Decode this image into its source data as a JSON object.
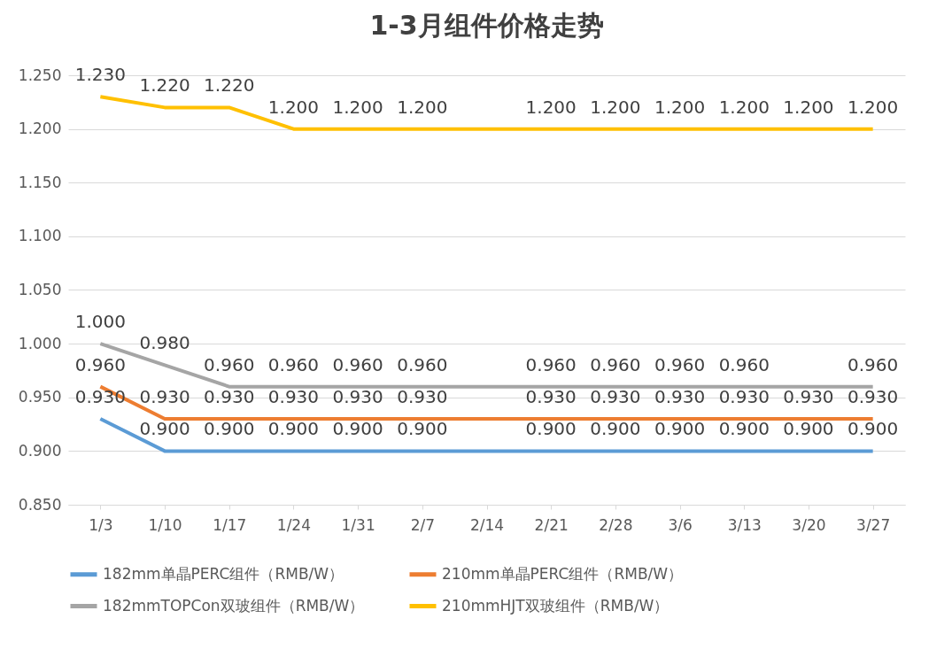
{
  "chart_data": {
    "type": "line",
    "title": "1-3月组件价格走势",
    "categories": [
      "1/3",
      "1/10",
      "1/17",
      "1/24",
      "1/31",
      "2/7",
      "2/14",
      "2/21",
      "2/28",
      "3/6",
      "3/13",
      "3/20",
      "3/27"
    ],
    "series": [
      {
        "name": "182mm单晶PERC组件（RMB/W）",
        "color": "#5b9bd5",
        "values": [
          0.93,
          0.9,
          0.9,
          0.9,
          0.9,
          0.9,
          0.9,
          0.9,
          0.9,
          0.9,
          0.9,
          0.9,
          0.9
        ],
        "value_labels": [
          "0.930",
          "0.900",
          "0.900",
          "0.900",
          "0.900",
          "0.900",
          null,
          "0.900",
          "0.900",
          "0.900",
          "0.900",
          "0.900",
          "0.900"
        ]
      },
      {
        "name": "210mm单晶PERC组件（RMB/W）",
        "color": "#ed7d31",
        "values": [
          0.96,
          0.93,
          0.93,
          0.93,
          0.93,
          0.93,
          0.93,
          0.93,
          0.93,
          0.93,
          0.93,
          0.93,
          0.93
        ],
        "value_labels": [
          "0.960",
          "0.930",
          "0.930",
          "0.930",
          "0.930",
          "0.930",
          null,
          "0.930",
          "0.930",
          "0.930",
          "0.930",
          "0.930",
          "0.930"
        ]
      },
      {
        "name": "182mmTOPCon双玻组件（RMB/W）",
        "color": "#a5a5a5",
        "values": [
          1.0,
          0.98,
          0.96,
          0.96,
          0.96,
          0.96,
          0.96,
          0.96,
          0.96,
          0.96,
          0.96,
          0.96,
          0.96
        ],
        "value_labels": [
          "1.000",
          "0.980",
          "0.960",
          "0.960",
          "0.960",
          "0.960",
          null,
          "0.960",
          "0.960",
          "0.960",
          "0.960",
          null,
          "0.960"
        ]
      },
      {
        "name": "210mmHJT双玻组件（RMB/W）",
        "color": "#ffc000",
        "values": [
          1.23,
          1.22,
          1.22,
          1.2,
          1.2,
          1.2,
          1.2,
          1.2,
          1.2,
          1.2,
          1.2,
          1.2,
          1.2
        ],
        "value_labels": [
          "1.230",
          "1.220",
          "1.220",
          "1.200",
          "1.200",
          "1.200",
          null,
          "1.200",
          "1.200",
          "1.200",
          "1.200",
          "1.200",
          "1.200"
        ]
      }
    ],
    "ylim": [
      0.85,
      1.25
    ],
    "yticks": [
      {
        "value": 0.85,
        "label": "0.850"
      },
      {
        "value": 0.9,
        "label": "0.900"
      },
      {
        "value": 0.95,
        "label": "0.950"
      },
      {
        "value": 1.0,
        "label": "1.000"
      },
      {
        "value": 1.05,
        "label": "1.050"
      },
      {
        "value": 1.1,
        "label": "1.100"
      },
      {
        "value": 1.15,
        "label": "1.150"
      },
      {
        "value": 1.2,
        "label": "1.200"
      },
      {
        "value": 1.25,
        "label": "1.250"
      }
    ],
    "grid": "y",
    "legend": "bottom",
    "marker": "none",
    "line_style": "solid"
  }
}
